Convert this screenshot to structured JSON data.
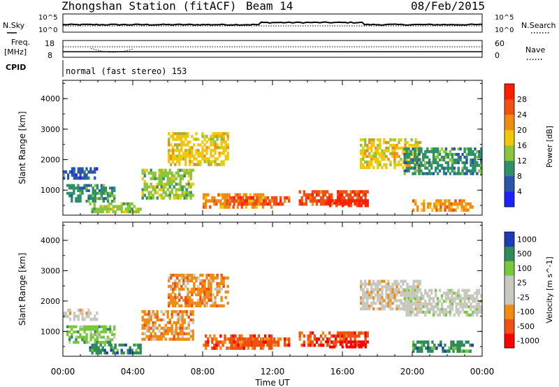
{
  "header": {
    "station": "Zhongshan Station (fitACF)",
    "beam": "Beam 14",
    "date": "08/Feb/2015"
  },
  "top_labels": {
    "nsky": "N.Sky",
    "nsearch": "N.Search",
    "freq_line1": "Freq.",
    "freq_line2": "[MHz]",
    "cpid": "CPID",
    "nave": "Nave",
    "nsky_hi": "10^5",
    "nsky_lo": "10^0",
    "nsearch_hi": "10^5",
    "nsearch_lo": "10^0",
    "freq_hi": "18",
    "freq_lo": "8",
    "nave_hi": "60",
    "nave_lo": "0",
    "cpid_text": "normal (fast stereo) 153"
  },
  "colors": {
    "power": [
      "#1e22ff",
      "#2a55aa",
      "#2e9068",
      "#8cc43c",
      "#f0c80a",
      "#f08c14",
      "#f05014",
      "#ff1e00"
    ],
    "velocity": [
      "#ff0000",
      "#f05014",
      "#f08c14",
      "#c8c8c0",
      "#c8c8c0",
      "#78c83c",
      "#2e8c5a",
      "#1e3cb4"
    ]
  },
  "chart_data": [
    {
      "type": "heatmap",
      "panel": "power",
      "xlabel": "",
      "ylabel": "Slant Range [km]",
      "x_ticks": [
        "00:00",
        "04:00",
        "08:00",
        "12:00",
        "16:00",
        "20:00",
        "00:00"
      ],
      "y_ticks": [
        "1000",
        "2000",
        "3000",
        "4000"
      ],
      "ylim": [
        180,
        4600
      ],
      "xlim_hours": [
        0,
        24
      ],
      "colorbar_label": "Power [dB]",
      "colorbar_ticks": [
        "4",
        "8",
        "12",
        "16",
        "20",
        "24",
        "28"
      ],
      "echo_regions": [
        {
          "t0": 0.0,
          "t1": 2.0,
          "r0": 1350,
          "r1": 1750,
          "level": 1
        },
        {
          "t0": 0.2,
          "t1": 3.0,
          "r0": 600,
          "r1": 1200,
          "level": 2
        },
        {
          "t0": 1.5,
          "t1": 4.5,
          "r0": 250,
          "r1": 600,
          "level": 3
        },
        {
          "t0": 4.5,
          "t1": 7.5,
          "r0": 700,
          "r1": 1700,
          "level": 3
        },
        {
          "t0": 6.0,
          "t1": 9.5,
          "r0": 1800,
          "r1": 2900,
          "level": 4
        },
        {
          "t0": 8.0,
          "t1": 12.0,
          "r0": 400,
          "r1": 900,
          "level": 5
        },
        {
          "t0": 9.5,
          "t1": 13.0,
          "r0": 500,
          "r1": 800,
          "level": 6
        },
        {
          "t0": 13.5,
          "t1": 17.5,
          "r0": 500,
          "r1": 1000,
          "level": 6
        },
        {
          "t0": 15.0,
          "t1": 17.5,
          "r0": 450,
          "r1": 700,
          "level": 7
        },
        {
          "t0": 17.0,
          "t1": 20.5,
          "r0": 1700,
          "r1": 2700,
          "level": 4
        },
        {
          "t0": 19.5,
          "t1": 24.0,
          "r0": 1500,
          "r1": 2400,
          "level": 2
        },
        {
          "t0": 20.0,
          "t1": 23.5,
          "r0": 300,
          "r1": 700,
          "level": 5
        }
      ]
    },
    {
      "type": "heatmap",
      "panel": "velocity",
      "xlabel": "Time UT",
      "ylabel": "Slant Range [km]",
      "x_ticks": [
        "00:00",
        "04:00",
        "08:00",
        "12:00",
        "16:00",
        "20:00",
        "00:00"
      ],
      "y_ticks": [
        "1000",
        "2000",
        "3000",
        "4000"
      ],
      "ylim": [
        180,
        4600
      ],
      "xlim_hours": [
        0,
        24
      ],
      "colorbar_label": "Velocity [m s^-1]",
      "colorbar_ticks": [
        "1000",
        "500",
        "100",
        "25",
        "-25",
        "-100",
        "-500",
        "-1000"
      ],
      "echo_regions": [
        {
          "t0": 0.0,
          "t1": 2.0,
          "r0": 1350,
          "r1": 1750,
          "level": 3
        },
        {
          "t0": 0.2,
          "t1": 3.0,
          "r0": 600,
          "r1": 1200,
          "level": 5
        },
        {
          "t0": 1.5,
          "t1": 4.5,
          "r0": 250,
          "r1": 600,
          "level": 6
        },
        {
          "t0": 4.5,
          "t1": 7.5,
          "r0": 700,
          "r1": 1700,
          "level": 2
        },
        {
          "t0": 6.0,
          "t1": 9.5,
          "r0": 1800,
          "r1": 2900,
          "level": 2
        },
        {
          "t0": 8.0,
          "t1": 12.0,
          "r0": 400,
          "r1": 900,
          "level": 1
        },
        {
          "t0": 9.5,
          "t1": 13.0,
          "r0": 500,
          "r1": 800,
          "level": 1
        },
        {
          "t0": 13.5,
          "t1": 17.5,
          "r0": 500,
          "r1": 1000,
          "level": 1
        },
        {
          "t0": 15.0,
          "t1": 17.5,
          "r0": 450,
          "r1": 700,
          "level": 0
        },
        {
          "t0": 17.0,
          "t1": 20.5,
          "r0": 1700,
          "r1": 2700,
          "level": 3
        },
        {
          "t0": 19.5,
          "t1": 24.0,
          "r0": 1500,
          "r1": 2400,
          "level": 4
        },
        {
          "t0": 20.0,
          "t1": 23.5,
          "r0": 300,
          "r1": 700,
          "level": 6
        }
      ]
    }
  ]
}
